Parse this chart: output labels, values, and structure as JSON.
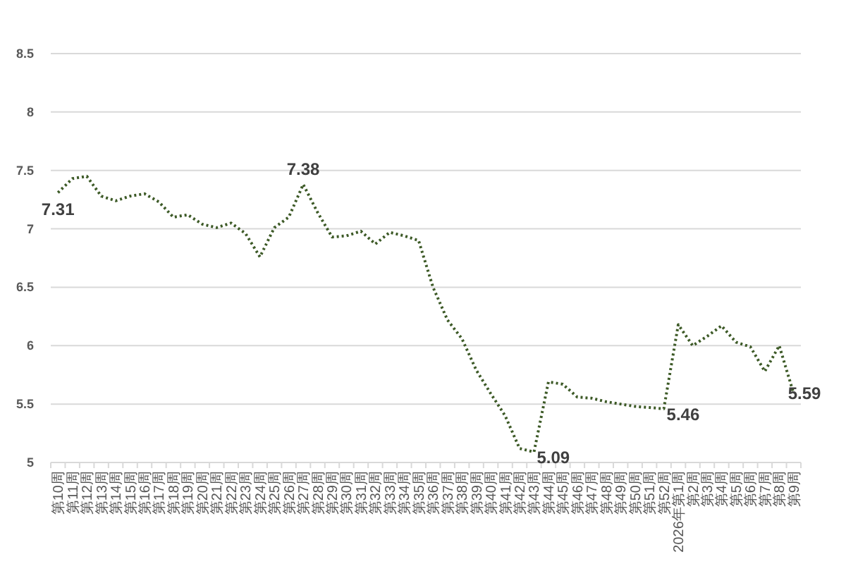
{
  "chart_data": {
    "type": "line",
    "categories": [
      "第10周",
      "第11周",
      "第12周",
      "第13周",
      "第14周",
      "第15周",
      "第16周",
      "第17周",
      "第18周",
      "第19周",
      "第20周",
      "第21周",
      "第22周",
      "第23周",
      "第24周",
      "第25周",
      "第26周",
      "第27周",
      "第28周",
      "第29周",
      "第30周",
      "第31周",
      "第32周",
      "第33周",
      "第34周",
      "第35周",
      "第36周",
      "第37周",
      "第38周",
      "第39周",
      "第40周",
      "第41周",
      "第42周",
      "第43周",
      "第44周",
      "第45周",
      "第46周",
      "第47周",
      "第48周",
      "第49周",
      "第50周",
      "第51周",
      "第52周",
      "2026年第1周",
      "第2周",
      "第3周",
      "第4周",
      "第5周",
      "第6周",
      "第7周",
      "第8周",
      "第9周"
    ],
    "series": [
      {
        "color": "#3d5a27",
        "values": [
          7.31,
          7.43,
          7.45,
          7.28,
          7.24,
          7.28,
          7.3,
          7.23,
          7.1,
          7.12,
          7.04,
          7.01,
          7.05,
          6.96,
          6.76,
          7.01,
          7.1,
          7.38,
          7.14,
          6.93,
          6.94,
          6.98,
          6.87,
          6.97,
          6.94,
          6.9,
          6.5,
          6.22,
          6.06,
          5.79,
          5.59,
          5.4,
          5.12,
          5.09,
          5.69,
          5.67,
          5.56,
          5.55,
          5.52,
          5.5,
          5.48,
          5.47,
          5.46,
          6.18,
          6,
          6.08,
          6.17,
          6.03,
          5.99,
          5.78,
          6,
          5.59
        ],
        "value_labels": [
          "7.31",
          null,
          null,
          null,
          null,
          null,
          null,
          null,
          null,
          null,
          null,
          null,
          null,
          null,
          null,
          null,
          null,
          "7.38",
          null,
          null,
          null,
          null,
          null,
          null,
          null,
          null,
          null,
          null,
          null,
          null,
          null,
          null,
          null,
          "5.09",
          null,
          null,
          null,
          null,
          null,
          null,
          null,
          null,
          "5.46",
          null,
          null,
          null,
          null,
          null,
          null,
          null,
          null,
          "5.59"
        ]
      }
    ],
    "ylim": [
      5,
      8.5
    ],
    "yticks": [
      5,
      5.5,
      6,
      6.5,
      7,
      7.5,
      8,
      8.5
    ],
    "grid": "y",
    "line_style": "dotted",
    "marker": "none"
  }
}
